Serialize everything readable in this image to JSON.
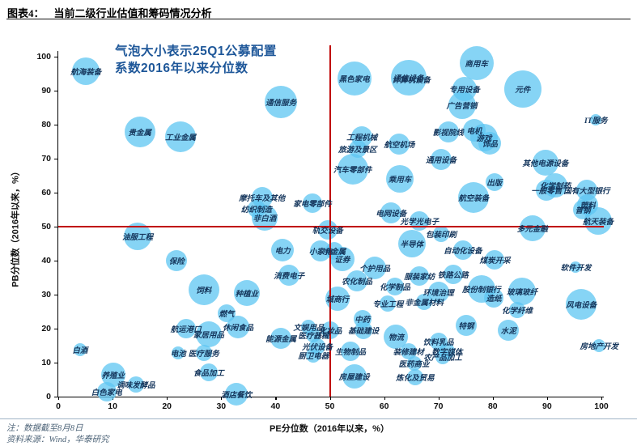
{
  "header": {
    "tag": "图表4：",
    "title": "当前二级行业估值和筹码情况分析"
  },
  "annotation": {
    "line1": "气泡大小表示25Q1公募配置",
    "line2": "系数2016年以来分位数"
  },
  "axes": {
    "x_label": "PE分位数（2016年以来，%）",
    "y_label": "PB分位数（2016年以来，%）",
    "x_ticks": [
      0,
      10,
      20,
      30,
      40,
      50,
      60,
      70,
      80,
      90,
      100
    ],
    "y_ticks": [
      0,
      10,
      20,
      30,
      40,
      50,
      60,
      70,
      80,
      90,
      100
    ]
  },
  "footer": {
    "note": "注：数据截至8月8日",
    "source": "资料来源：Wind，华泰研究"
  },
  "colors": {
    "bubble": "#5DC5F2",
    "crosshair": "#C00000",
    "annotation": "#1E5799",
    "point_label": "#15365C"
  },
  "chart_data": {
    "type": "scatter",
    "title": "当前二级行业估值和筹码情况分析",
    "xlabel": "PE分位数（2016年以来，%）",
    "ylabel": "PB分位数（2016年以来，%）",
    "xlim": [
      0,
      100
    ],
    "ylim": [
      0,
      100
    ],
    "grid": false,
    "size_legend": "气泡大小表示25Q1公募配置系数2016年以来分位数",
    "crosshair": {
      "x": 50,
      "y": 50
    },
    "points": [
      {
        "label": "航海装备",
        "x": 5.1,
        "y": 95.7,
        "r": 17
      },
      {
        "label": "通信服务",
        "x": 41.0,
        "y": 86.7,
        "r": 20
      },
      {
        "label": "黑色家电",
        "x": 54.5,
        "y": 93.6,
        "r": 21
      },
      {
        "label": "通信设备",
        "x": 64.5,
        "y": 93.8,
        "r": 22
      },
      {
        "label": "计算机设备",
        "x": 65.0,
        "y": 93.3,
        "r": 0
      },
      {
        "label": "商用车",
        "x": 77.0,
        "y": 98.0,
        "r": 21
      },
      {
        "label": "专用设备",
        "x": 74.8,
        "y": 90.5,
        "r": 15
      },
      {
        "label": "广告营销",
        "x": 74.3,
        "y": 85.8,
        "r": 17
      },
      {
        "label": "元件",
        "x": 85.5,
        "y": 90.5,
        "r": 23
      },
      {
        "label": "IT服务",
        "x": 99.0,
        "y": 81.5,
        "r": 7
      },
      {
        "label": "贵金属",
        "x": 15.0,
        "y": 77.8,
        "r": 19
      },
      {
        "label": "工业金属",
        "x": 22.5,
        "y": 76.5,
        "r": 19
      },
      {
        "label": "工程机械",
        "x": 55.9,
        "y": 76.4,
        "r": 13
      },
      {
        "label": "旅游及景区",
        "x": 55.1,
        "y": 72.9,
        "r": 11
      },
      {
        "label": "汽车零部件",
        "x": 54.2,
        "y": 67.0,
        "r": 19
      },
      {
        "label": "航空机场",
        "x": 62.8,
        "y": 74.3,
        "r": 13
      },
      {
        "label": "通用设备",
        "x": 70.5,
        "y": 69.8,
        "r": 13
      },
      {
        "label": "乘用车",
        "x": 62.9,
        "y": 64.0,
        "r": 17
      },
      {
        "label": "影视院线",
        "x": 71.8,
        "y": 77.9,
        "r": 13
      },
      {
        "label": "电机",
        "x": 76.6,
        "y": 78.3,
        "r": 14
      },
      {
        "label": "游戏",
        "x": 78.4,
        "y": 76.2,
        "r": 17
      },
      {
        "label": "饰品",
        "x": 79.5,
        "y": 74.5,
        "r": 14
      },
      {
        "label": "出版",
        "x": 80.3,
        "y": 63.1,
        "r": 11
      },
      {
        "label": "其他电源设备",
        "x": 89.7,
        "y": 68.8,
        "r": 16
      },
      {
        "label": "航空装备",
        "x": 76.5,
        "y": 58.6,
        "r": 19
      },
      {
        "label": "摩托车及其他",
        "x": 37.5,
        "y": 58.6,
        "r": 13
      },
      {
        "label": "纺织制造",
        "x": 36.5,
        "y": 55.2,
        "r": 11
      },
      {
        "label": "非白酒",
        "x": 38.0,
        "y": 52.6,
        "r": 16
      },
      {
        "label": "家电零部件",
        "x": 46.8,
        "y": 57.0,
        "r": 12
      },
      {
        "label": "电网设备",
        "x": 61.3,
        "y": 54.0,
        "r": 13
      },
      {
        "label": "光学光电子",
        "x": 66.5,
        "y": 51.7,
        "r": 12
      },
      {
        "label": "轨交设备",
        "x": 49.6,
        "y": 49.0,
        "r": 12
      },
      {
        "label": "包装印刷",
        "x": 70.5,
        "y": 47.9,
        "r": 10
      },
      {
        "label": "半导体",
        "x": 65.1,
        "y": 45.0,
        "r": 17
      },
      {
        "label": "自动化设备",
        "x": 74.5,
        "y": 43.1,
        "r": 12
      },
      {
        "label": "多元金融",
        "x": 87.3,
        "y": 49.5,
        "r": 16
      },
      {
        "label": "一般零售",
        "x": 89.9,
        "y": 60.7,
        "r": 13
      },
      {
        "label": "化学制药",
        "x": 91.5,
        "y": 62.1,
        "r": 15
      },
      {
        "label": "国有大型银行",
        "x": 97.3,
        "y": 60.7,
        "r": 13
      },
      {
        "label": "塑料",
        "x": 97.5,
        "y": 56.4,
        "r": 13
      },
      {
        "label": "普钢",
        "x": 96.6,
        "y": 55.0,
        "r": 12
      },
      {
        "label": "航天装备",
        "x": 99.4,
        "y": 51.7,
        "r": 17
      },
      {
        "label": "油服工程",
        "x": 14.6,
        "y": 47.1,
        "r": 17
      },
      {
        "label": "保险",
        "x": 21.8,
        "y": 40.0,
        "r": 13
      },
      {
        "label": "电力",
        "x": 41.3,
        "y": 43.1,
        "r": 14
      },
      {
        "label": "小家电",
        "x": 48.3,
        "y": 42.9,
        "r": 13
      },
      {
        "label": "小金属",
        "x": 50.8,
        "y": 42.9,
        "r": 11
      },
      {
        "label": "证券",
        "x": 52.3,
        "y": 40.5,
        "r": 15
      },
      {
        "label": "消费电子",
        "x": 42.5,
        "y": 35.7,
        "r": 13
      },
      {
        "label": "个护用品",
        "x": 58.3,
        "y": 37.9,
        "r": 14
      },
      {
        "label": "农化制品",
        "x": 55.0,
        "y": 34.0,
        "r": 13
      },
      {
        "label": "化学制品",
        "x": 62.0,
        "y": 32.4,
        "r": 11
      },
      {
        "label": "服装家纺",
        "x": 66.5,
        "y": 35.5,
        "r": 12
      },
      {
        "label": "铁路公路",
        "x": 72.7,
        "y": 36.0,
        "r": 12
      },
      {
        "label": "环境治理",
        "x": 70.0,
        "y": 30.7,
        "r": 13
      },
      {
        "label": "股份制银行",
        "x": 77.9,
        "y": 31.7,
        "r": 17
      },
      {
        "label": "造纸",
        "x": 80.2,
        "y": 29.0,
        "r": 12
      },
      {
        "label": "煤炭开采",
        "x": 80.4,
        "y": 40.2,
        "r": 12
      },
      {
        "label": "城商行",
        "x": 51.4,
        "y": 28.8,
        "r": 15
      },
      {
        "label": "专业工程",
        "x": 60.7,
        "y": 27.4,
        "r": 10
      },
      {
        "label": "非金属材料",
        "x": 67.4,
        "y": 27.9,
        "r": 10
      },
      {
        "label": "中药",
        "x": 56.0,
        "y": 22.9,
        "r": 11
      },
      {
        "label": "特钢",
        "x": 75.1,
        "y": 21.0,
        "r": 13
      },
      {
        "label": "文娱用品",
        "x": 46.1,
        "y": 20.5,
        "r": 9
      },
      {
        "label": "化妆品",
        "x": 50.1,
        "y": 19.5,
        "r": 11
      },
      {
        "label": "基础建设",
        "x": 56.2,
        "y": 19.5,
        "r": 11
      },
      {
        "label": "医疗器械",
        "x": 47.0,
        "y": 18.1,
        "r": 9
      },
      {
        "label": "能源金属",
        "x": 41.0,
        "y": 17.1,
        "r": 13
      },
      {
        "label": "物流",
        "x": 62.2,
        "y": 17.6,
        "r": 15
      },
      {
        "label": "饮料乳品",
        "x": 70.0,
        "y": 16.2,
        "r": 11
      },
      {
        "label": "光伏设备",
        "x": 47.7,
        "y": 14.8,
        "r": 10
      },
      {
        "label": "装修建材",
        "x": 64.5,
        "y": 13.3,
        "r": 10
      },
      {
        "label": "数字媒体",
        "x": 71.6,
        "y": 13.3,
        "r": 10
      },
      {
        "label": "生物制品",
        "x": 53.8,
        "y": 13.3,
        "r": 12
      },
      {
        "label": "厨卫电器",
        "x": 47.0,
        "y": 12.1,
        "r": 9
      },
      {
        "label": "农产品加工",
        "x": 70.8,
        "y": 11.7,
        "r": 9
      },
      {
        "label": "医药商业",
        "x": 65.5,
        "y": 9.8,
        "r": 9
      },
      {
        "label": "房屋建设",
        "x": 54.5,
        "y": 6.0,
        "r": 15
      },
      {
        "label": "炼化及贸易",
        "x": 65.7,
        "y": 5.7,
        "r": 10
      },
      {
        "label": "软件开发",
        "x": 95.3,
        "y": 38.1,
        "r": 7
      },
      {
        "label": "玻璃玻纤",
        "x": 85.4,
        "y": 31.0,
        "r": 17
      },
      {
        "label": "化学纤维",
        "x": 84.5,
        "y": 25.5,
        "r": 10
      },
      {
        "label": "水泥",
        "x": 82.9,
        "y": 19.5,
        "r": 13
      },
      {
        "label": "风电设备",
        "x": 96.3,
        "y": 27.1,
        "r": 19
      },
      {
        "label": "房地产开发",
        "x": 99.6,
        "y": 15.0,
        "r": 8
      },
      {
        "label": "饲料",
        "x": 26.8,
        "y": 31.4,
        "r": 19
      },
      {
        "label": "种植业",
        "x": 34.7,
        "y": 30.5,
        "r": 16
      },
      {
        "label": "燃气",
        "x": 31.0,
        "y": 24.5,
        "r": 11
      },
      {
        "label": "航运港口",
        "x": 23.5,
        "y": 20.0,
        "r": 12
      },
      {
        "label": "休闲食品",
        "x": 33.1,
        "y": 20.5,
        "r": 14
      },
      {
        "label": "家居用品",
        "x": 27.7,
        "y": 18.3,
        "r": 16
      },
      {
        "label": "白酒",
        "x": 4.0,
        "y": 13.8,
        "r": 8
      },
      {
        "label": "电池",
        "x": 22.1,
        "y": 12.9,
        "r": 8
      },
      {
        "label": "医疗服务",
        "x": 26.8,
        "y": 12.9,
        "r": 10
      },
      {
        "label": "食品加工",
        "x": 27.7,
        "y": 7.1,
        "r": 11
      },
      {
        "label": "养殖业",
        "x": 10.1,
        "y": 6.4,
        "r": 15
      },
      {
        "label": "调味发酵品",
        "x": 14.3,
        "y": 3.6,
        "r": 10
      },
      {
        "label": "白色家电",
        "x": 8.9,
        "y": 1.4,
        "r": 12
      },
      {
        "label": "酒店餐饮",
        "x": 32.8,
        "y": 0.7,
        "r": 14
      }
    ]
  }
}
